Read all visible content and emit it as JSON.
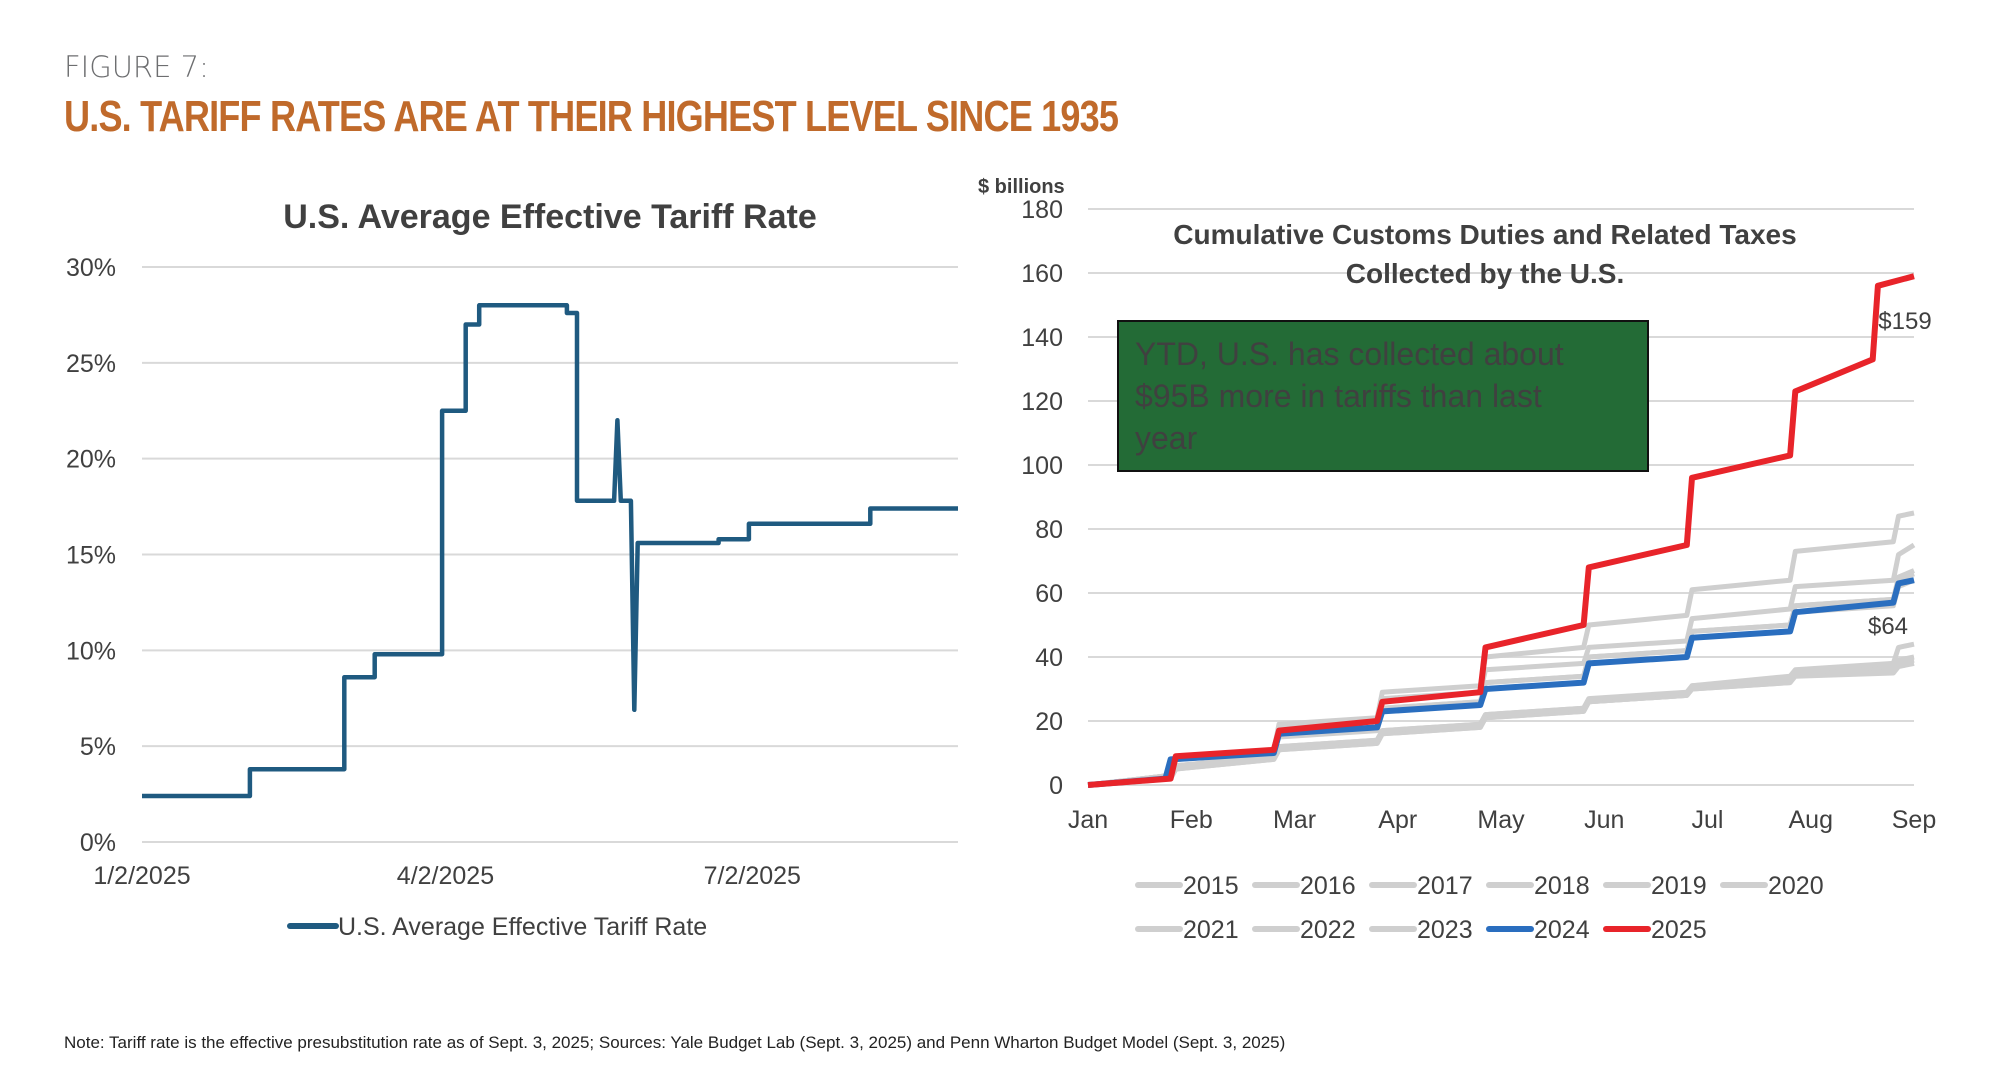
{
  "header": {
    "figure_label": "FIGURE 7:",
    "headline": "U.S. TARIFF RATES ARE AT THEIR HIGHEST LEVEL SINCE 1935"
  },
  "note": "Note: Tariff rate is the effective presubstitution rate as of Sept. 3, 2025; Sources: Yale Budget Lab (Sept. 3, 2025) and Penn Wharton Budget Model (Sept. 3, 2025)",
  "chart_data": [
    {
      "type": "line",
      "title": "U.S. Average Effective Tariff Rate",
      "xlabel": "",
      "ylabel": "",
      "x_unit": "days since 1/2/2025",
      "xlim": [
        0,
        242
      ],
      "ylim": [
        0,
        30
      ],
      "yticks": [
        0,
        5,
        10,
        15,
        20,
        25,
        30
      ],
      "ytick_labels": [
        "0%",
        "5%",
        "10%",
        "15%",
        "20%",
        "25%",
        "30%"
      ],
      "xticks": [
        0,
        90,
        181
      ],
      "xtick_labels": [
        "1/2/2025",
        "4/2/2025",
        "7/2/2025"
      ],
      "grid": true,
      "legend": "bottom",
      "color": "#1f5a80",
      "series": [
        {
          "name": "U.S. Average Effective Tariff Rate",
          "step": true,
          "points": [
            [
              0,
              2.4
            ],
            [
              32,
              2.4
            ],
            [
              32,
              3.8
            ],
            [
              60,
              3.8
            ],
            [
              60,
              8.6
            ],
            [
              69,
              8.6
            ],
            [
              69,
              9.8
            ],
            [
              89,
              9.8
            ],
            [
              89,
              22.5
            ],
            [
              96,
              22.5
            ],
            [
              96,
              27.0
            ],
            [
              100,
              27.0
            ],
            [
              100,
              28.0
            ],
            [
              126,
              28.0
            ],
            [
              126,
              27.6
            ],
            [
              129,
              27.6
            ],
            [
              129,
              17.8
            ],
            [
              140,
              17.8
            ],
            [
              141,
              22.0
            ],
            [
              142,
              17.8
            ],
            [
              145,
              17.8
            ],
            [
              146,
              6.9
            ],
            [
              147,
              15.6
            ],
            [
              171,
              15.6
            ],
            [
              171,
              15.8
            ],
            [
              180,
              15.8
            ],
            [
              180,
              16.6
            ],
            [
              216,
              16.6
            ],
            [
              216,
              17.4
            ],
            [
              242,
              17.4
            ]
          ]
        }
      ]
    },
    {
      "type": "line",
      "title": "Cumulative Customs Duties and Related Taxes Collected by the U.S.",
      "ylabel": "$ billions",
      "xlabel": "",
      "x_unit": "months since Jan 1",
      "xlim": [
        0,
        8
      ],
      "ylim": [
        0,
        180
      ],
      "yticks": [
        0,
        20,
        40,
        60,
        80,
        100,
        120,
        140,
        160,
        180
      ],
      "xticks": [
        0,
        1,
        2,
        3,
        4,
        5,
        6,
        7,
        8
      ],
      "xtick_labels": [
        "Jan",
        "Feb",
        "Mar",
        "Apr",
        "May",
        "Jun",
        "Jul",
        "Aug",
        "Sep"
      ],
      "grid": true,
      "legend": "bottom",
      "annotation": "YTD, U.S. has collected about $95B more in tariffs than last year",
      "annotation_color": "#236b36",
      "end_labels": [
        {
          "series": "2025",
          "text": "$159",
          "color": "#e8242a"
        },
        {
          "series": "2024",
          "text": "$64",
          "color": "#2a6ebf"
        }
      ],
      "series": [
        {
          "name": "2015",
          "color": "#cfcfcf",
          "values_x": [
            0,
            0.8,
            0.85,
            1.8,
            1.85,
            2.8,
            2.85,
            3.8,
            3.85,
            4.8,
            4.85,
            5.8,
            5.85,
            6.8,
            6.85,
            7.8,
            7.85,
            8
          ],
          "values_y": [
            0,
            2,
            5,
            8,
            11,
            13,
            16,
            18,
            21,
            23,
            26,
            28,
            30,
            32,
            34,
            35,
            37,
            38
          ]
        },
        {
          "name": "2016",
          "color": "#cfcfcf",
          "values_x": [
            0,
            0.8,
            0.85,
            1.8,
            1.85,
            2.8,
            2.85,
            3.8,
            3.85,
            4.8,
            4.85,
            5.8,
            5.85,
            6.8,
            6.85,
            7.8,
            7.85,
            8
          ],
          "values_y": [
            0,
            2,
            5,
            8,
            11,
            13,
            16,
            18,
            21,
            23,
            26,
            28,
            30,
            32,
            35,
            36,
            38,
            39
          ]
        },
        {
          "name": "2017",
          "color": "#cfcfcf",
          "values_x": [
            0,
            0.8,
            0.85,
            1.8,
            1.85,
            2.8,
            2.85,
            3.8,
            3.85,
            4.8,
            4.85,
            5.8,
            5.85,
            6.8,
            6.85,
            7.8,
            7.85,
            8
          ],
          "values_y": [
            0,
            2,
            6,
            9,
            12,
            14,
            17,
            19,
            22,
            24,
            26,
            28,
            31,
            33,
            35,
            37,
            39,
            40
          ]
        },
        {
          "name": "2018",
          "color": "#cfcfcf",
          "values_x": [
            0,
            0.8,
            0.85,
            1.8,
            1.85,
            2.8,
            2.85,
            3.8,
            3.85,
            4.8,
            4.85,
            5.8,
            5.85,
            6.8,
            6.85,
            7.8,
            7.85,
            8
          ],
          "values_y": [
            0,
            2,
            6,
            9,
            12,
            14,
            17,
            19,
            22,
            24,
            27,
            29,
            31,
            34,
            36,
            38,
            43,
            44
          ]
        },
        {
          "name": "2019",
          "color": "#cfcfcf",
          "values_x": [
            0,
            0.8,
            0.85,
            1.8,
            1.85,
            2.8,
            2.85,
            3.8,
            3.85,
            4.8,
            4.85,
            5.8,
            5.85,
            6.8,
            6.85,
            7.8,
            7.85,
            8
          ],
          "values_y": [
            0,
            3,
            9,
            11,
            19,
            21,
            29,
            31,
            40,
            43,
            50,
            53,
            61,
            64,
            73,
            76,
            84,
            85
          ]
        },
        {
          "name": "2020",
          "color": "#cfcfcf",
          "values_x": [
            0,
            0.8,
            0.85,
            1.8,
            1.85,
            2.8,
            2.85,
            3.8,
            3.85,
            4.8,
            4.85,
            5.8,
            5.85,
            6.8,
            6.85,
            7.8,
            7.85,
            8
          ],
          "values_y": [
            0,
            3,
            9,
            11,
            18,
            20,
            27,
            29,
            36,
            38,
            43,
            45,
            52,
            55,
            62,
            64,
            72,
            75
          ]
        },
        {
          "name": "2021",
          "color": "#cfcfcf",
          "values_x": [
            0,
            0.8,
            0.85,
            1.8,
            1.85,
            2.8,
            2.85,
            3.8,
            3.85,
            4.8,
            4.85,
            5.8,
            5.85,
            6.8,
            6.85,
            7.8,
            7.85,
            8
          ],
          "values_y": [
            0,
            3,
            8,
            10,
            16,
            18,
            24,
            26,
            32,
            34,
            40,
            42,
            48,
            50,
            56,
            58,
            64,
            66
          ]
        },
        {
          "name": "2022",
          "color": "#cfcfcf",
          "values_x": [
            0,
            0.8,
            0.85,
            1.8,
            1.85,
            2.8,
            2.85,
            3.8,
            3.85,
            4.8,
            4.85,
            5.8,
            5.85,
            6.8,
            6.85,
            7.8,
            7.85,
            8
          ],
          "values_y": [
            0,
            3,
            8,
            10,
            16,
            18,
            24,
            26,
            32,
            34,
            40,
            42,
            48,
            50,
            56,
            58,
            65,
            67
          ]
        },
        {
          "name": "2023",
          "color": "#cfcfcf",
          "values_x": [
            0,
            0.8,
            0.85,
            1.8,
            1.85,
            2.8,
            2.85,
            3.8,
            3.85,
            4.8,
            4.85,
            5.8,
            5.85,
            6.8,
            6.85,
            7.8,
            7.85,
            8
          ],
          "values_y": [
            0,
            3,
            8,
            10,
            15,
            17,
            23,
            25,
            30,
            32,
            38,
            40,
            46,
            48,
            54,
            56,
            62,
            64
          ]
        },
        {
          "name": "2024",
          "color": "#2a6ebf",
          "values_x": [
            0,
            0.75,
            0.8,
            1.8,
            1.85,
            2.8,
            2.85,
            3.8,
            3.85,
            4.8,
            4.85,
            5.8,
            5.85,
            6.8,
            6.85,
            7.8,
            7.85,
            8
          ],
          "values_y": [
            0,
            2,
            8,
            10,
            16,
            18,
            23,
            25,
            30,
            32,
            38,
            40,
            46,
            48,
            54,
            57,
            63,
            64
          ]
        },
        {
          "name": "2025",
          "color": "#e8242a",
          "values_x": [
            0,
            0.8,
            0.85,
            1.8,
            1.85,
            2.8,
            2.85,
            3.8,
            3.85,
            4.8,
            4.85,
            5.8,
            5.85,
            6.8,
            6.85,
            7.6,
            7.65,
            8
          ],
          "values_y": [
            0,
            2,
            9,
            11,
            17,
            20,
            26,
            29,
            43,
            50,
            68,
            75,
            96,
            103,
            123,
            133,
            156,
            159
          ]
        }
      ]
    }
  ]
}
